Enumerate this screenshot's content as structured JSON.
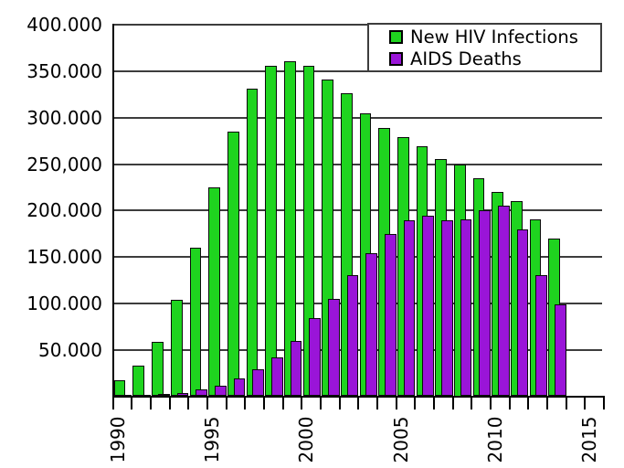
{
  "chart_data": {
    "type": "bar",
    "title": "",
    "x": [
      1990,
      1991,
      1992,
      1993,
      1994,
      1995,
      1996,
      1997,
      1998,
      1999,
      2000,
      2001,
      2002,
      2003,
      2004,
      2005,
      2006,
      2007,
      2008,
      2009,
      2010,
      2011,
      2012,
      2013
    ],
    "series": [
      {
        "name": "New HIV Infections",
        "color": "#1fd41f",
        "values": [
          17000,
          33000,
          59000,
          104000,
          160000,
          225000,
          285000,
          331000,
          356000,
          361000,
          356000,
          341000,
          326000,
          305000,
          289000,
          279000,
          269000,
          255000,
          250000,
          235000,
          220000,
          210000,
          190000,
          170000
        ]
      },
      {
        "name": "AIDS Deaths",
        "color": "#9a15d8",
        "values": [
          1000,
          1500,
          2000,
          3000,
          7000,
          11000,
          19000,
          29000,
          42000,
          60000,
          84000,
          105000,
          130000,
          154000,
          175000,
          189000,
          194000,
          189000,
          190000,
          200000,
          205000,
          180000,
          130000,
          99000
        ]
      }
    ],
    "y_axis": {
      "min": 0,
      "max": 425000,
      "ticks": [
        {
          "value": 50000,
          "label": "50.000"
        },
        {
          "value": 100000,
          "label": "100.000"
        },
        {
          "value": 150000,
          "label": "150.000"
        },
        {
          "value": 200000,
          "label": "200.000"
        },
        {
          "value": 250000,
          "label": "250,000"
        },
        {
          "value": 300000,
          "label": "300.000"
        },
        {
          "value": 350000,
          "label": "350.000"
        },
        {
          "value": 400000,
          "label": "400.000"
        }
      ]
    },
    "x_axis": {
      "range": [
        1990,
        2016
      ],
      "ticks": [
        {
          "year": 1990,
          "label": "1990"
        },
        {
          "year": 1995,
          "label": "1995"
        },
        {
          "year": 2000,
          "label": "2000"
        },
        {
          "year": 2005,
          "label": "2005"
        },
        {
          "year": 2010,
          "label": "2010"
        },
        {
          "year": 2015,
          "label": "2015"
        }
      ]
    },
    "grid": true,
    "legend_position": "top-right",
    "legend": [
      "New HIV Infections",
      "AIDS Deaths"
    ]
  }
}
